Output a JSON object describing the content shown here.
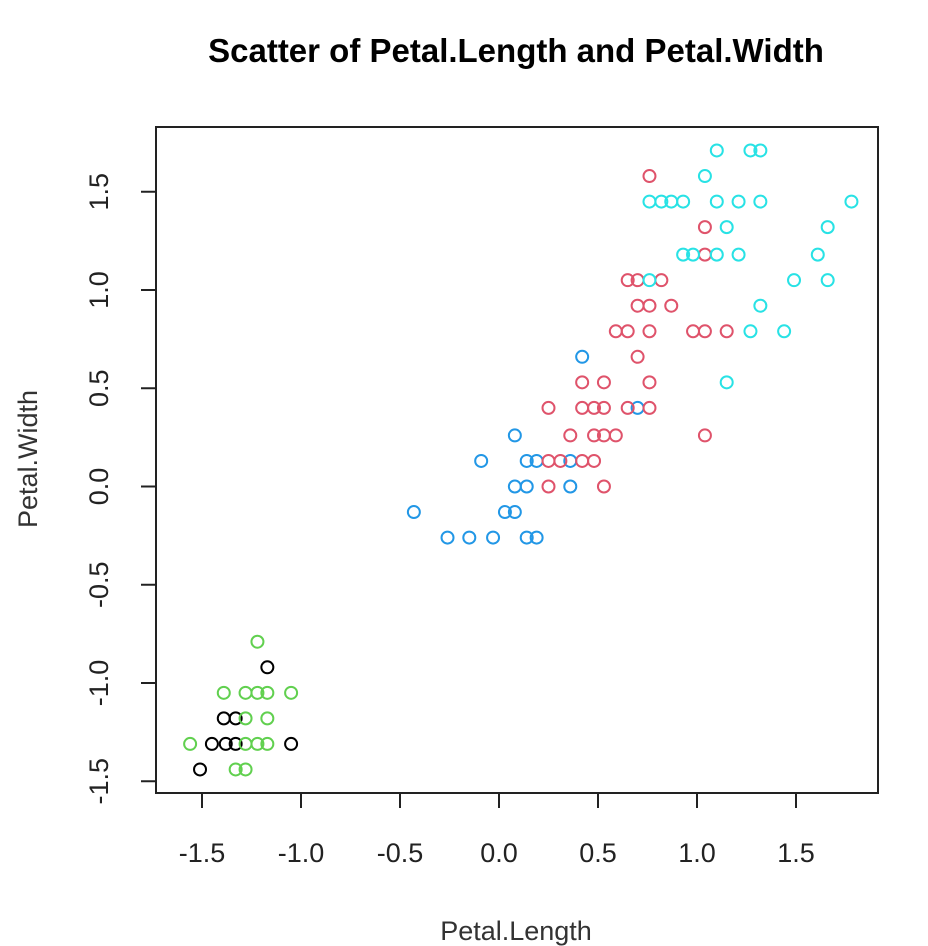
{
  "chart_data": {
    "type": "scatter",
    "title": "Scatter of  Petal.Length and Petal.Width",
    "xlabel": "Petal.Length",
    "ylabel": "Petal.Width",
    "xlim": [
      -1.6,
      1.8
    ],
    "ylim": [
      -1.55,
      1.8
    ],
    "xticks": [
      -1.5,
      -1.0,
      -0.5,
      0.0,
      0.5,
      1.0,
      1.5
    ],
    "yticks": [
      -1.5,
      -1.0,
      -0.5,
      0.0,
      0.5,
      1.0,
      1.5
    ],
    "xtick_labels": [
      "-1.5",
      "-1.0",
      "-0.5",
      "0.0",
      "0.5",
      "1.0",
      "1.5"
    ],
    "ytick_labels": [
      "-1.5",
      "-1.0",
      "-0.5",
      "0.0",
      "0.5",
      "1.0",
      "1.5"
    ],
    "grid": false,
    "series": [
      {
        "name": "black",
        "color": "#000000",
        "points": [
          [
            -1.17,
            -0.92
          ],
          [
            -1.39,
            -1.18
          ],
          [
            -1.33,
            -1.18
          ],
          [
            -1.45,
            -1.31
          ],
          [
            -1.38,
            -1.31
          ],
          [
            -1.33,
            -1.31
          ],
          [
            -1.05,
            -1.31
          ],
          [
            -1.51,
            -1.44
          ]
        ]
      },
      {
        "name": "green",
        "color": "#61d04f",
        "points": [
          [
            -1.22,
            -0.79
          ],
          [
            -1.39,
            -1.05
          ],
          [
            -1.28,
            -1.05
          ],
          [
            -1.22,
            -1.05
          ],
          [
            -1.17,
            -1.05
          ],
          [
            -1.05,
            -1.05
          ],
          [
            -1.28,
            -1.18
          ],
          [
            -1.17,
            -1.18
          ],
          [
            -1.56,
            -1.31
          ],
          [
            -1.28,
            -1.31
          ],
          [
            -1.22,
            -1.31
          ],
          [
            -1.17,
            -1.31
          ],
          [
            -1.33,
            -1.44
          ],
          [
            -1.28,
            -1.44
          ]
        ]
      },
      {
        "name": "blue",
        "color": "#2297e6",
        "points": [
          [
            0.42,
            0.66
          ],
          [
            0.7,
            0.4
          ],
          [
            0.08,
            0.26
          ],
          [
            -0.09,
            0.13
          ],
          [
            0.14,
            0.13
          ],
          [
            0.19,
            0.13
          ],
          [
            0.36,
            0.13
          ],
          [
            0.08,
            0.0
          ],
          [
            0.14,
            0.0
          ],
          [
            0.36,
            0.0
          ],
          [
            -0.43,
            -0.13
          ],
          [
            0.03,
            -0.13
          ],
          [
            0.08,
            -0.13
          ],
          [
            -0.26,
            -0.26
          ],
          [
            -0.15,
            -0.26
          ],
          [
            -0.03,
            -0.26
          ],
          [
            0.14,
            -0.26
          ],
          [
            0.19,
            -0.26
          ]
        ]
      },
      {
        "name": "red",
        "color": "#df536b",
        "points": [
          [
            0.76,
            1.58
          ],
          [
            1.04,
            1.32
          ],
          [
            1.04,
            1.18
          ],
          [
            0.65,
            1.05
          ],
          [
            0.7,
            1.05
          ],
          [
            0.82,
            1.05
          ],
          [
            0.7,
            0.92
          ],
          [
            0.76,
            0.92
          ],
          [
            0.87,
            0.92
          ],
          [
            0.59,
            0.79
          ],
          [
            0.65,
            0.79
          ],
          [
            0.76,
            0.79
          ],
          [
            0.98,
            0.79
          ],
          [
            1.04,
            0.79
          ],
          [
            1.15,
            0.79
          ],
          [
            0.7,
            0.66
          ],
          [
            0.42,
            0.53
          ],
          [
            0.53,
            0.53
          ],
          [
            0.76,
            0.53
          ],
          [
            0.25,
            0.4
          ],
          [
            0.42,
            0.4
          ],
          [
            0.48,
            0.4
          ],
          [
            0.53,
            0.4
          ],
          [
            0.65,
            0.4
          ],
          [
            0.76,
            0.4
          ],
          [
            0.36,
            0.26
          ],
          [
            0.48,
            0.26
          ],
          [
            0.53,
            0.26
          ],
          [
            0.59,
            0.26
          ],
          [
            1.04,
            0.26
          ],
          [
            0.25,
            0.13
          ],
          [
            0.31,
            0.13
          ],
          [
            0.42,
            0.13
          ],
          [
            0.48,
            0.13
          ],
          [
            0.25,
            0.0
          ],
          [
            0.53,
            0.0
          ]
        ]
      },
      {
        "name": "cyan",
        "color": "#28e2e5",
        "points": [
          [
            1.1,
            1.71
          ],
          [
            1.27,
            1.71
          ],
          [
            1.32,
            1.71
          ],
          [
            1.04,
            1.58
          ],
          [
            0.76,
            1.45
          ],
          [
            0.82,
            1.45
          ],
          [
            0.87,
            1.45
          ],
          [
            0.93,
            1.45
          ],
          [
            1.1,
            1.45
          ],
          [
            1.21,
            1.45
          ],
          [
            1.32,
            1.45
          ],
          [
            1.78,
            1.45
          ],
          [
            1.15,
            1.32
          ],
          [
            1.66,
            1.32
          ],
          [
            0.93,
            1.18
          ],
          [
            0.98,
            1.18
          ],
          [
            1.1,
            1.18
          ],
          [
            1.21,
            1.18
          ],
          [
            1.61,
            1.18
          ],
          [
            0.76,
            1.05
          ],
          [
            1.49,
            1.05
          ],
          [
            1.66,
            1.05
          ],
          [
            1.32,
            0.92
          ],
          [
            1.27,
            0.79
          ],
          [
            1.44,
            0.79
          ],
          [
            1.15,
            0.53
          ]
        ]
      }
    ]
  }
}
